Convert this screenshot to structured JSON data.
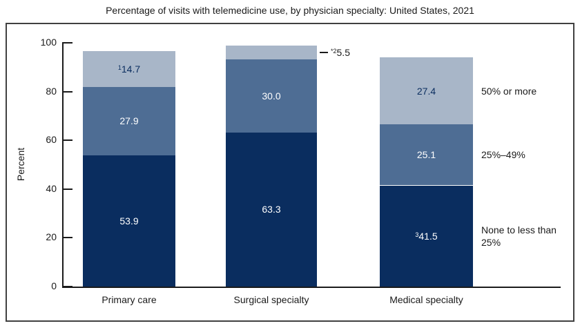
{
  "chart_data": {
    "type": "bar",
    "subtype": "stacked",
    "title": "Percentage of visits with telemedicine use, by physician specialty: United States, 2021",
    "ylabel": "Percent",
    "xlabel": "",
    "ylim": [
      0,
      100
    ],
    "yticks": [
      0,
      20,
      40,
      60,
      80,
      100
    ],
    "grid": false,
    "legend_position": "right-of-last-bar",
    "categories": [
      "Primary care",
      "Surgical specialty",
      "Medical specialty"
    ],
    "series": [
      {
        "name": "None to less than 25%",
        "color": "#0a2d5f",
        "values": [
          53.9,
          63.3,
          41.5
        ],
        "value_labels": [
          {
            "sup": "",
            "text": "53.9",
            "color": "#ffffff",
            "outside": false
          },
          {
            "sup": "",
            "text": "63.3",
            "color": "#ffffff",
            "outside": false
          },
          {
            "sup": "3",
            "text": "41.5",
            "color": "#ffffff",
            "outside": false
          }
        ]
      },
      {
        "name": "25%–49%",
        "color": "#4e6d94",
        "values": [
          27.9,
          30.0,
          25.1
        ],
        "value_labels": [
          {
            "sup": "",
            "text": "27.9",
            "color": "#ffffff",
            "outside": false
          },
          {
            "sup": "",
            "text": "30.0",
            "color": "#ffffff",
            "outside": false
          },
          {
            "sup": "",
            "text": "25.1",
            "color": "#ffffff",
            "outside": false
          }
        ]
      },
      {
        "name": "50% or more",
        "color": "#a8b6c8",
        "values": [
          14.7,
          5.5,
          27.4
        ],
        "value_labels": [
          {
            "sup": "1",
            "text": "14.7",
            "color": "#0a2d5f",
            "outside": false
          },
          {
            "sup": "*2",
            "text": "5.5",
            "color": "#1a1a1a",
            "outside": true
          },
          {
            "sup": "",
            "text": "27.4",
            "color": "#0a2d5f",
            "outside": false
          }
        ]
      }
    ]
  }
}
